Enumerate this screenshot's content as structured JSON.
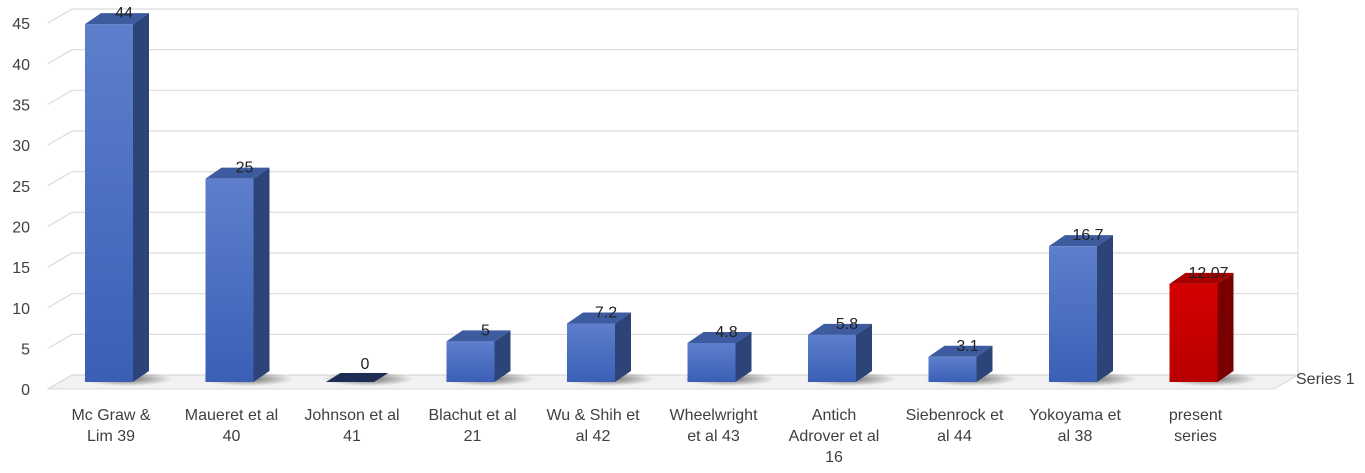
{
  "chart_data": {
    "type": "bar",
    "categories": [
      [
        "Mc Graw &",
        "Lim 39"
      ],
      [
        "Maueret et al",
        "40"
      ],
      [
        "Johnson et al",
        "41"
      ],
      [
        "Blachut et al",
        "21"
      ],
      [
        "Wu & Shih et",
        "al 42"
      ],
      [
        "Wheelwright",
        "et al 43"
      ],
      [
        "Antich",
        "Adrover et al",
        "16"
      ],
      [
        "Siebenrock et",
        "al  44"
      ],
      [
        "Yokoyama et",
        "al  38"
      ],
      [
        "present",
        "series"
      ]
    ],
    "series": [
      {
        "name": "Series 1",
        "values": [
          44,
          25,
          0,
          5,
          7.2,
          4.8,
          5.8,
          3.1,
          16.7,
          12.07
        ]
      }
    ],
    "data_labels": [
      "44",
      "25",
      "0",
      "5",
      "7.2",
      "4.8",
      "5.8",
      "3.1",
      "16.7",
      "12.07"
    ],
    "yticks": [
      "0",
      "5",
      "10",
      "15",
      "20",
      "25",
      "30",
      "35",
      "40",
      "45"
    ],
    "ylim": [
      0,
      45
    ],
    "grid": true,
    "colors": {
      "bar": "#4472c4",
      "highlight": "#c00000",
      "grid": "#d9d9d9"
    },
    "highlight_index": 9
  }
}
